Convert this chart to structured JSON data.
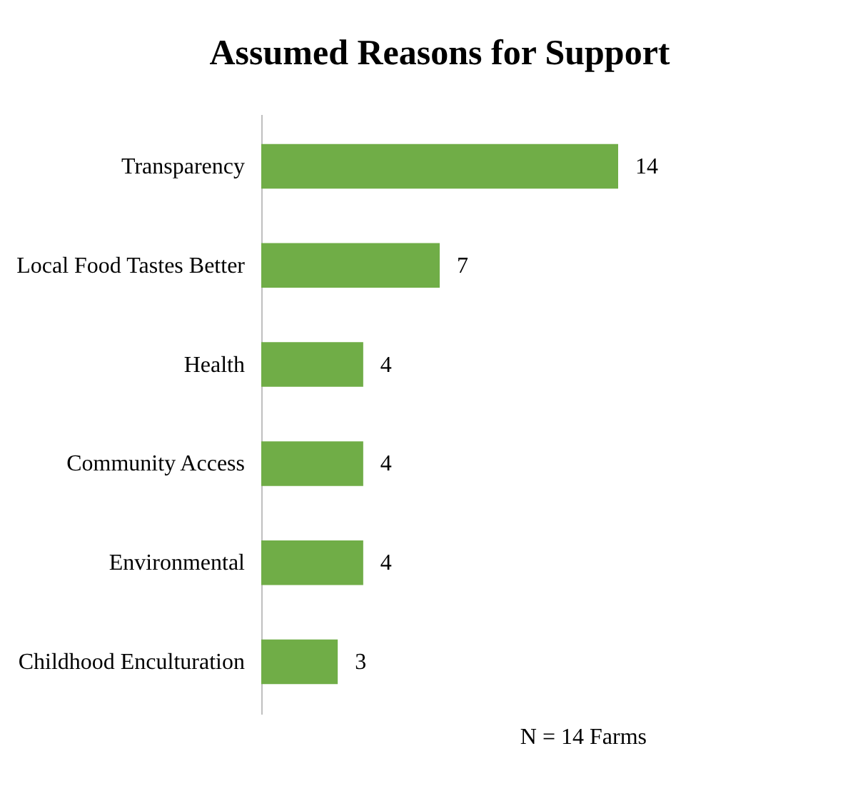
{
  "chart_data": {
    "type": "bar",
    "orientation": "horizontal",
    "title": "Assumed Reasons for Support",
    "categories": [
      "Transparency",
      "Local Food Tastes Better",
      "Health",
      "Community Access",
      "Environmental",
      "Childhood Enculturation"
    ],
    "values": [
      14,
      7,
      4,
      4,
      4,
      3
    ],
    "color": "#70ad47",
    "data_labels": true,
    "grid": false,
    "annotations": [
      "N = 14 Farms"
    ]
  }
}
